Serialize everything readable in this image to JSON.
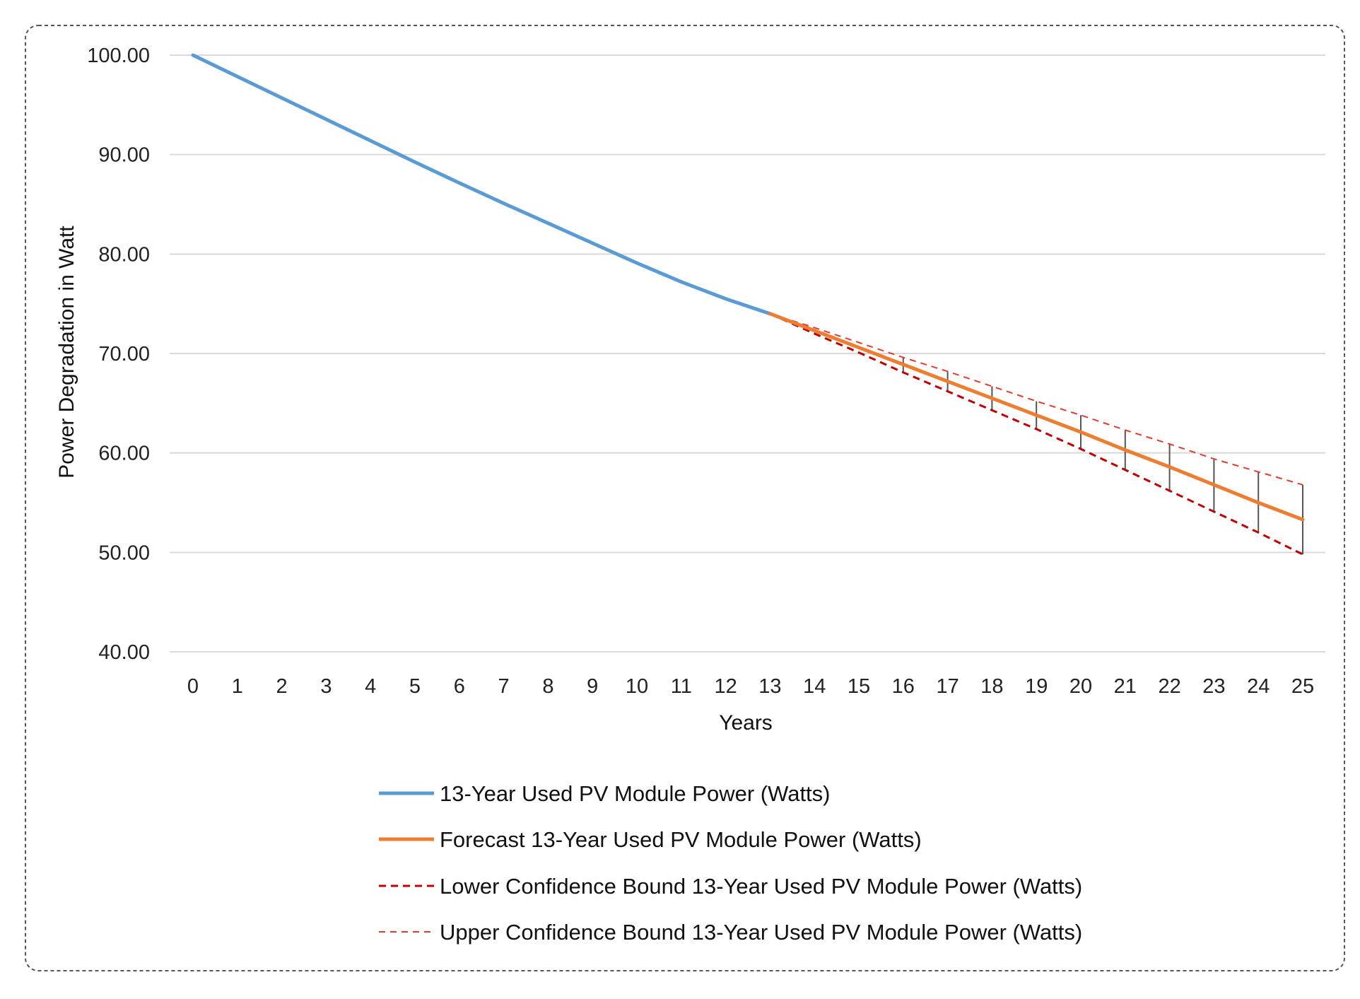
{
  "chart_data": {
    "type": "line",
    "title": "",
    "xlabel": "Years",
    "ylabel": "Power Degradation in Watt",
    "ylim": [
      40,
      100
    ],
    "xlim": [
      0,
      25
    ],
    "y_ticks": [
      "40.00",
      "50.00",
      "60.00",
      "70.00",
      "80.00",
      "90.00",
      "100.00"
    ],
    "x_ticks": [
      "0",
      "1",
      "2",
      "3",
      "4",
      "5",
      "6",
      "7",
      "8",
      "9",
      "10",
      "11",
      "12",
      "13",
      "14",
      "15",
      "16",
      "17",
      "18",
      "19",
      "20",
      "21",
      "22",
      "23",
      "24",
      "25"
    ],
    "grid": "horizontal",
    "legend_position": "bottom",
    "series": [
      {
        "name": "13-Year Used PV Module Power (Watts)",
        "color": "#5B9BD5",
        "style": "solid",
        "x": [
          0,
          1,
          2,
          3,
          4,
          5,
          6,
          7,
          8,
          9,
          10,
          11,
          12,
          13
        ],
        "values": [
          100.0,
          97.85,
          95.7,
          93.55,
          91.4,
          89.25,
          87.15,
          85.1,
          83.1,
          81.1,
          79.1,
          77.2,
          75.5,
          74.0
        ]
      },
      {
        "name": "Forecast 13-Year Used PV Module Power (Watts)",
        "color": "#ED7D31",
        "style": "solid",
        "x": [
          13,
          14,
          15,
          16,
          17,
          18,
          19,
          20,
          21,
          22,
          23,
          24,
          25
        ],
        "values": [
          74.0,
          72.3,
          70.6,
          68.9,
          67.2,
          65.5,
          63.8,
          62.1,
          60.3,
          58.6,
          56.8,
          55.0,
          53.3
        ]
      },
      {
        "name": "Lower Confidence Bound 13-Year Used PV Module Power (Watts)",
        "color": "#C00000",
        "style": "dashed",
        "x": [
          13,
          14,
          15,
          16,
          17,
          18,
          19,
          20,
          21,
          22,
          23,
          24,
          25
        ],
        "values": [
          74.0,
          72.0,
          70.1,
          68.1,
          66.2,
          64.3,
          62.4,
          60.4,
          58.3,
          56.2,
          54.1,
          52.0,
          49.8
        ]
      },
      {
        "name": "Upper Confidence Bound 13-Year Used PV Module Power (Watts)",
        "color": "#E03C31",
        "style": "dashed-thin",
        "x": [
          13,
          14,
          15,
          16,
          17,
          18,
          19,
          20,
          21,
          22,
          23,
          24,
          25
        ],
        "values": [
          74.0,
          72.6,
          71.1,
          69.6,
          68.2,
          66.7,
          65.2,
          63.8,
          62.3,
          60.9,
          59.4,
          58.1,
          56.8
        ]
      }
    ],
    "error_bars": {
      "color": "#555555",
      "x": [
        16,
        17,
        18,
        19,
        20,
        21,
        22,
        23,
        24,
        25
      ]
    }
  }
}
